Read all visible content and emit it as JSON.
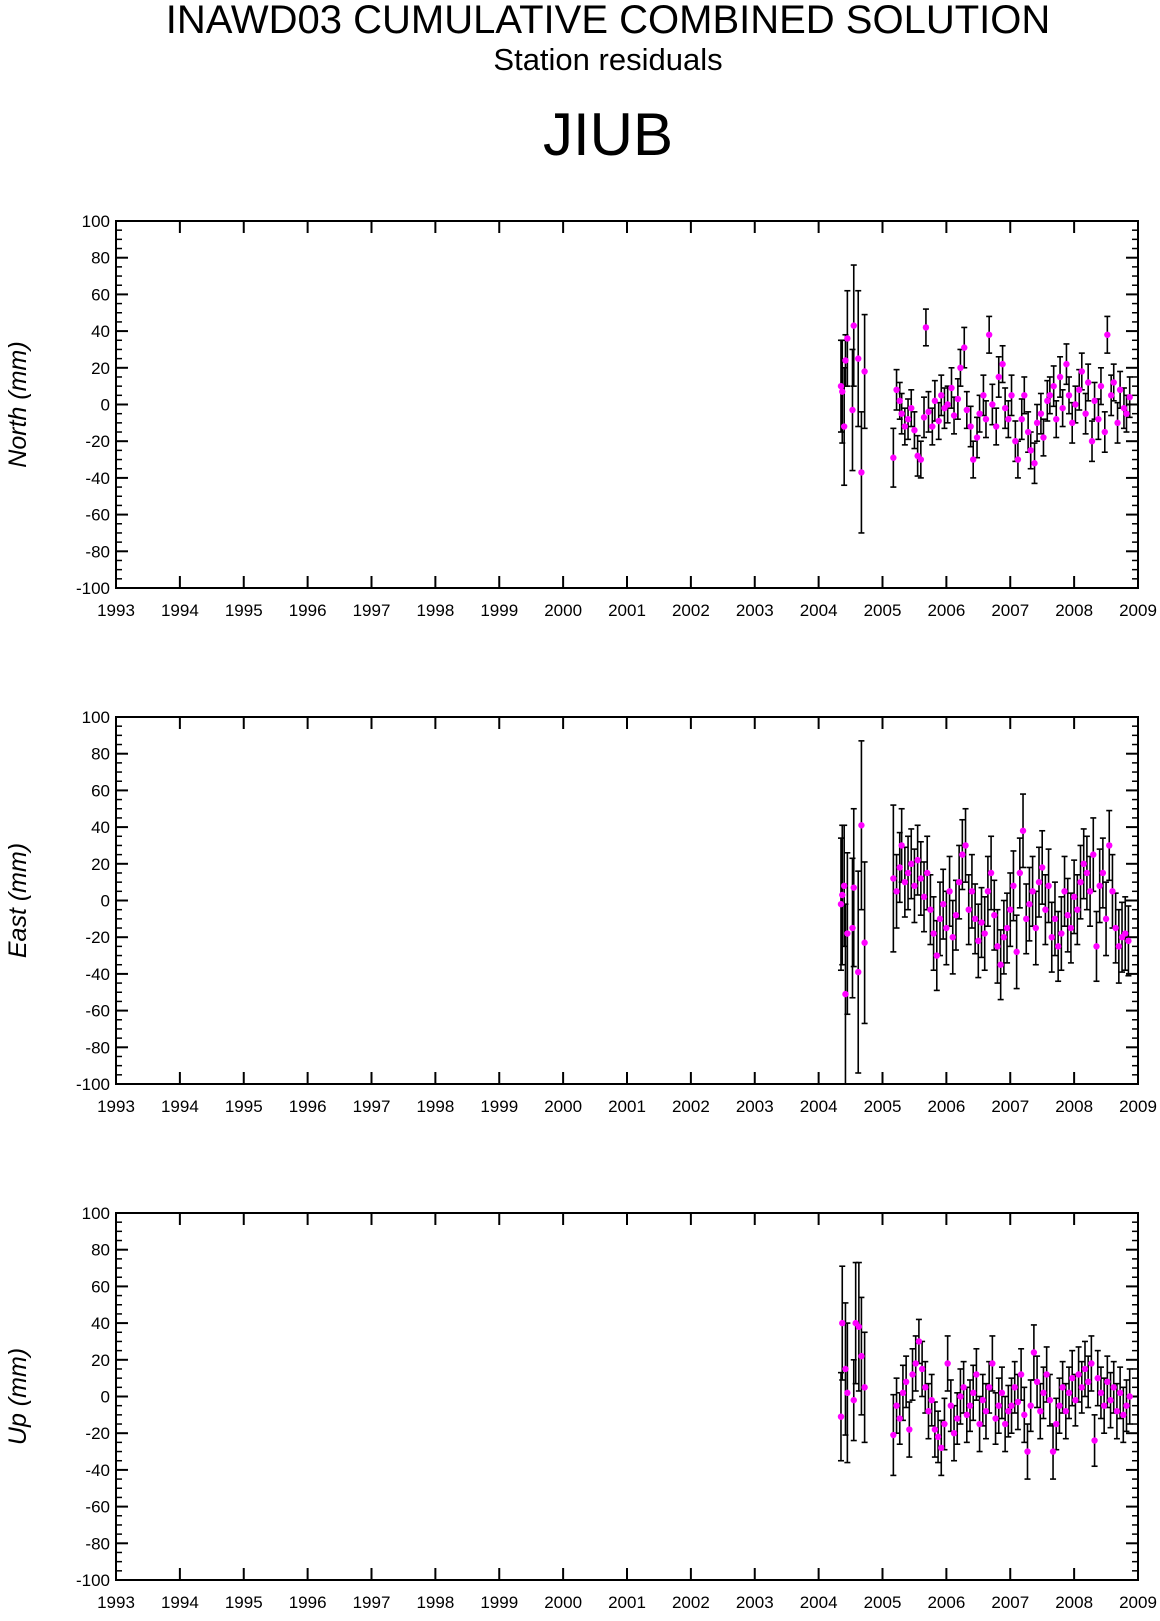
{
  "title": "INAWD03 CUMULATIVE COMBINED SOLUTION",
  "subtitle": "Station residuals",
  "station": "JIUB",
  "colors": {
    "point": "#ff00ff",
    "errorbar": "#000000",
    "axis": "#000000"
  },
  "chart_data": [
    {
      "type": "scatter",
      "ylabel": "North (mm)",
      "xlim": [
        1993,
        2009
      ],
      "ylim": [
        -100,
        100
      ],
      "x_ticks": [
        "1993",
        "1994",
        "1995",
        "1996",
        "1997",
        "1998",
        "1999",
        "2000",
        "2001",
        "2002",
        "2003",
        "2004",
        "2005",
        "2006",
        "2007",
        "2008",
        "2009"
      ],
      "y_ticks": [
        "100",
        "80",
        "60",
        "40",
        "20",
        "0",
        "-20",
        "-40",
        "-60",
        "-80",
        "-100"
      ],
      "error_bars": true,
      "points": [
        [
          2004.35,
          10,
          25
        ],
        [
          2004.37,
          7,
          28
        ],
        [
          2004.4,
          -12,
          32
        ],
        [
          2004.42,
          24,
          14
        ],
        [
          2004.45,
          36,
          26
        ],
        [
          2004.53,
          -3,
          33
        ],
        [
          2004.55,
          43,
          33
        ],
        [
          2004.62,
          25,
          37
        ],
        [
          2004.67,
          -37,
          33
        ],
        [
          2004.72,
          18,
          31
        ],
        [
          2005.17,
          -29,
          16
        ],
        [
          2005.22,
          8,
          11
        ],
        [
          2005.27,
          2,
          10
        ],
        [
          2005.3,
          -5,
          11
        ],
        [
          2005.35,
          -12,
          10
        ],
        [
          2005.4,
          -8,
          11
        ],
        [
          2005.45,
          -2,
          10
        ],
        [
          2005.5,
          -14,
          10
        ],
        [
          2005.55,
          -28,
          11
        ],
        [
          2005.6,
          -30,
          10
        ],
        [
          2005.65,
          -7,
          11
        ],
        [
          2005.68,
          42,
          10
        ],
        [
          2005.72,
          -4,
          11
        ],
        [
          2005.78,
          -12,
          10
        ],
        [
          2005.82,
          2,
          11
        ],
        [
          2005.88,
          -9,
          10
        ],
        [
          2005.92,
          5,
          11
        ],
        [
          2005.97,
          -2,
          11
        ],
        [
          2006.02,
          0,
          10
        ],
        [
          2006.08,
          9,
          11
        ],
        [
          2006.12,
          -6,
          10
        ],
        [
          2006.18,
          3,
          11
        ],
        [
          2006.22,
          20,
          10
        ],
        [
          2006.28,
          31,
          11
        ],
        [
          2006.32,
          -3,
          10
        ],
        [
          2006.38,
          -12,
          11
        ],
        [
          2006.42,
          -30,
          10
        ],
        [
          2006.48,
          -18,
          11
        ],
        [
          2006.52,
          -5,
          10
        ],
        [
          2006.58,
          5,
          11
        ],
        [
          2006.62,
          -8,
          10
        ],
        [
          2006.67,
          38,
          10
        ],
        [
          2006.72,
          0,
          11
        ],
        [
          2006.78,
          -12,
          10
        ],
        [
          2006.82,
          15,
          11
        ],
        [
          2006.88,
          22,
          10
        ],
        [
          2006.92,
          -2,
          11
        ],
        [
          2006.97,
          -8,
          10
        ],
        [
          2007.02,
          5,
          11
        ],
        [
          2007.08,
          -20,
          11
        ],
        [
          2007.12,
          -30,
          10
        ],
        [
          2007.18,
          -8,
          11
        ],
        [
          2007.22,
          5,
          10
        ],
        [
          2007.28,
          -15,
          11
        ],
        [
          2007.32,
          -25,
          10
        ],
        [
          2007.38,
          -32,
          11
        ],
        [
          2007.42,
          -10,
          10
        ],
        [
          2007.48,
          -5,
          11
        ],
        [
          2007.52,
          -18,
          10
        ],
        [
          2007.58,
          2,
          11
        ],
        [
          2007.62,
          5,
          10
        ],
        [
          2007.68,
          10,
          11
        ],
        [
          2007.72,
          -8,
          10
        ],
        [
          2007.78,
          15,
          11
        ],
        [
          2007.82,
          -2,
          10
        ],
        [
          2007.88,
          22,
          11
        ],
        [
          2007.92,
          5,
          10
        ],
        [
          2007.97,
          -10,
          11
        ],
        [
          2008.02,
          0,
          10
        ],
        [
          2008.08,
          8,
          11
        ],
        [
          2008.12,
          18,
          10
        ],
        [
          2008.18,
          -5,
          11
        ],
        [
          2008.22,
          12,
          10
        ],
        [
          2008.28,
          -20,
          11
        ],
        [
          2008.32,
          2,
          10
        ],
        [
          2008.38,
          -8,
          11
        ],
        [
          2008.42,
          10,
          10
        ],
        [
          2008.48,
          -15,
          11
        ],
        [
          2008.52,
          38,
          10
        ],
        [
          2008.58,
          5,
          11
        ],
        [
          2008.62,
          12,
          10
        ],
        [
          2008.68,
          -10,
          11
        ],
        [
          2008.72,
          8,
          10
        ],
        [
          2008.78,
          -2,
          11
        ],
        [
          2008.82,
          -5,
          10
        ],
        [
          2008.87,
          4,
          11
        ]
      ]
    },
    {
      "type": "scatter",
      "ylabel": "East (mm)",
      "xlim": [
        1993,
        2009
      ],
      "ylim": [
        -100,
        100
      ],
      "x_ticks": [
        "1993",
        "1994",
        "1995",
        "1996",
        "1997",
        "1998",
        "1999",
        "2000",
        "2001",
        "2002",
        "2003",
        "2004",
        "2005",
        "2006",
        "2007",
        "2008",
        "2009"
      ],
      "y_ticks": [
        "100",
        "80",
        "60",
        "40",
        "20",
        "0",
        "-20",
        "-40",
        "-60",
        "-80",
        "-100"
      ],
      "error_bars": true,
      "points": [
        [
          2004.35,
          -2,
          36
        ],
        [
          2004.37,
          3,
          38
        ],
        [
          2004.4,
          8,
          33
        ],
        [
          2004.42,
          -51,
          49
        ],
        [
          2004.45,
          -18,
          44
        ],
        [
          2004.53,
          -15,
          38
        ],
        [
          2004.55,
          7,
          43
        ],
        [
          2004.62,
          -39,
          55
        ],
        [
          2004.67,
          41,
          46
        ],
        [
          2004.72,
          -23,
          44
        ],
        [
          2005.17,
          12,
          40
        ],
        [
          2005.22,
          5,
          20
        ],
        [
          2005.27,
          18,
          19
        ],
        [
          2005.3,
          30,
          20
        ],
        [
          2005.35,
          10,
          19
        ],
        [
          2005.4,
          15,
          20
        ],
        [
          2005.45,
          20,
          19
        ],
        [
          2005.5,
          8,
          20
        ],
        [
          2005.55,
          22,
          19
        ],
        [
          2005.6,
          12,
          20
        ],
        [
          2005.65,
          2,
          19
        ],
        [
          2005.7,
          15,
          20
        ],
        [
          2005.75,
          -5,
          19
        ],
        [
          2005.8,
          -18,
          20
        ],
        [
          2005.85,
          -30,
          19
        ],
        [
          2005.9,
          -10,
          20
        ],
        [
          2005.95,
          -2,
          19
        ],
        [
          2006.0,
          -15,
          20
        ],
        [
          2006.05,
          5,
          19
        ],
        [
          2006.1,
          -20,
          20
        ],
        [
          2006.15,
          -8,
          19
        ],
        [
          2006.2,
          10,
          20
        ],
        [
          2006.25,
          25,
          19
        ],
        [
          2006.3,
          30,
          20
        ],
        [
          2006.35,
          -5,
          19
        ],
        [
          2006.4,
          5,
          20
        ],
        [
          2006.45,
          -10,
          19
        ],
        [
          2006.5,
          -22,
          20
        ],
        [
          2006.55,
          -12,
          19
        ],
        [
          2006.6,
          -18,
          20
        ],
        [
          2006.65,
          5,
          19
        ],
        [
          2006.7,
          15,
          20
        ],
        [
          2006.75,
          -8,
          19
        ],
        [
          2006.8,
          -25,
          20
        ],
        [
          2006.85,
          -35,
          19
        ],
        [
          2006.9,
          -20,
          20
        ],
        [
          2006.95,
          -15,
          19
        ],
        [
          2007.0,
          -5,
          20
        ],
        [
          2007.05,
          8,
          19
        ],
        [
          2007.1,
          -28,
          20
        ],
        [
          2007.15,
          15,
          19
        ],
        [
          2007.2,
          38,
          20
        ],
        [
          2007.25,
          -10,
          19
        ],
        [
          2007.3,
          -2,
          20
        ],
        [
          2007.35,
          5,
          19
        ],
        [
          2007.4,
          -15,
          20
        ],
        [
          2007.45,
          10,
          19
        ],
        [
          2007.5,
          18,
          20
        ],
        [
          2007.55,
          -5,
          19
        ],
        [
          2007.6,
          8,
          20
        ],
        [
          2007.65,
          -20,
          19
        ],
        [
          2007.7,
          -10,
          20
        ],
        [
          2007.75,
          -25,
          19
        ],
        [
          2007.8,
          -18,
          20
        ],
        [
          2007.85,
          5,
          19
        ],
        [
          2007.9,
          -8,
          20
        ],
        [
          2007.95,
          -15,
          19
        ],
        [
          2008.0,
          2,
          20
        ],
        [
          2008.05,
          -5,
          19
        ],
        [
          2008.1,
          10,
          20
        ],
        [
          2008.15,
          20,
          19
        ],
        [
          2008.2,
          15,
          20
        ],
        [
          2008.25,
          5,
          19
        ],
        [
          2008.3,
          25,
          20
        ],
        [
          2008.35,
          -25,
          19
        ],
        [
          2008.4,
          8,
          20
        ],
        [
          2008.45,
          15,
          19
        ],
        [
          2008.5,
          -10,
          20
        ],
        [
          2008.55,
          30,
          19
        ],
        [
          2008.6,
          5,
          20
        ],
        [
          2008.65,
          -15,
          19
        ],
        [
          2008.7,
          -25,
          20
        ],
        [
          2008.75,
          -20,
          19
        ],
        [
          2008.8,
          -18,
          20
        ],
        [
          2008.85,
          -22,
          19
        ]
      ]
    },
    {
      "type": "scatter",
      "ylabel": "Up (mm)",
      "xlim": [
        1993,
        2009
      ],
      "ylim": [
        -100,
        100
      ],
      "x_ticks": [
        "1993",
        "1994",
        "1995",
        "1996",
        "1997",
        "1998",
        "1999",
        "2000",
        "2001",
        "2002",
        "2003",
        "2004",
        "2005",
        "2006",
        "2007",
        "2008",
        "2009"
      ],
      "y_ticks": [
        "100",
        "80",
        "60",
        "40",
        "20",
        "0",
        "-20",
        "-40",
        "-60",
        "-80",
        "-100"
      ],
      "error_bars": true,
      "points": [
        [
          2004.35,
          -11,
          24
        ],
        [
          2004.37,
          40,
          31
        ],
        [
          2004.42,
          15,
          36
        ],
        [
          2004.45,
          2,
          38
        ],
        [
          2004.55,
          -2,
          22
        ],
        [
          2004.58,
          40,
          33
        ],
        [
          2004.63,
          38,
          35
        ],
        [
          2004.67,
          22,
          32
        ],
        [
          2004.72,
          5,
          30
        ],
        [
          2005.17,
          -21,
          22
        ],
        [
          2005.22,
          -5,
          15
        ],
        [
          2005.27,
          -12,
          14
        ],
        [
          2005.32,
          2,
          15
        ],
        [
          2005.37,
          8,
          14
        ],
        [
          2005.42,
          -18,
          15
        ],
        [
          2005.47,
          12,
          14
        ],
        [
          2005.52,
          18,
          15
        ],
        [
          2005.57,
          30,
          12
        ],
        [
          2005.62,
          15,
          15
        ],
        [
          2005.67,
          5,
          14
        ],
        [
          2005.72,
          -8,
          15
        ],
        [
          2005.77,
          -2,
          14
        ],
        [
          2005.82,
          -18,
          15
        ],
        [
          2005.87,
          -22,
          14
        ],
        [
          2005.92,
          -28,
          15
        ],
        [
          2005.97,
          -15,
          14
        ],
        [
          2006.02,
          18,
          15
        ],
        [
          2006.07,
          -5,
          14
        ],
        [
          2006.12,
          -20,
          15
        ],
        [
          2006.17,
          -12,
          14
        ],
        [
          2006.22,
          0,
          15
        ],
        [
          2006.27,
          5,
          14
        ],
        [
          2006.32,
          -10,
          15
        ],
        [
          2006.37,
          -5,
          14
        ],
        [
          2006.42,
          2,
          15
        ],
        [
          2006.47,
          12,
          14
        ],
        [
          2006.52,
          -15,
          15
        ],
        [
          2006.57,
          -2,
          14
        ],
        [
          2006.62,
          -8,
          15
        ],
        [
          2006.67,
          5,
          14
        ],
        [
          2006.72,
          18,
          15
        ],
        [
          2006.77,
          -12,
          14
        ],
        [
          2006.82,
          -5,
          15
        ],
        [
          2006.87,
          2,
          14
        ],
        [
          2006.92,
          -15,
          15
        ],
        [
          2006.97,
          -8,
          14
        ],
        [
          2007.02,
          -5,
          15
        ],
        [
          2007.07,
          5,
          14
        ],
        [
          2007.12,
          -3,
          15
        ],
        [
          2007.17,
          12,
          14
        ],
        [
          2007.22,
          -10,
          15
        ],
        [
          2007.27,
          -30,
          15
        ],
        [
          2007.32,
          -5,
          14
        ],
        [
          2007.37,
          24,
          15
        ],
        [
          2007.42,
          8,
          14
        ],
        [
          2007.47,
          -8,
          15
        ],
        [
          2007.52,
          2,
          14
        ],
        [
          2007.57,
          12,
          15
        ],
        [
          2007.62,
          -2,
          14
        ],
        [
          2007.67,
          -30,
          15
        ],
        [
          2007.72,
          -15,
          14
        ],
        [
          2007.77,
          -5,
          15
        ],
        [
          2007.82,
          5,
          14
        ],
        [
          2007.87,
          -8,
          15
        ],
        [
          2007.92,
          2,
          14
        ],
        [
          2007.97,
          10,
          15
        ],
        [
          2008.02,
          -2,
          14
        ],
        [
          2008.07,
          12,
          15
        ],
        [
          2008.12,
          5,
          14
        ],
        [
          2008.17,
          15,
          15
        ],
        [
          2008.22,
          8,
          14
        ],
        [
          2008.27,
          18,
          15
        ],
        [
          2008.32,
          -24,
          14
        ],
        [
          2008.37,
          10,
          15
        ],
        [
          2008.42,
          2,
          14
        ],
        [
          2008.47,
          -5,
          15
        ],
        [
          2008.52,
          8,
          14
        ],
        [
          2008.57,
          -2,
          15
        ],
        [
          2008.62,
          5,
          14
        ],
        [
          2008.67,
          -8,
          15
        ],
        [
          2008.72,
          2,
          14
        ],
        [
          2008.77,
          -10,
          15
        ],
        [
          2008.82,
          -5,
          14
        ],
        [
          2008.87,
          0,
          15
        ]
      ]
    }
  ]
}
